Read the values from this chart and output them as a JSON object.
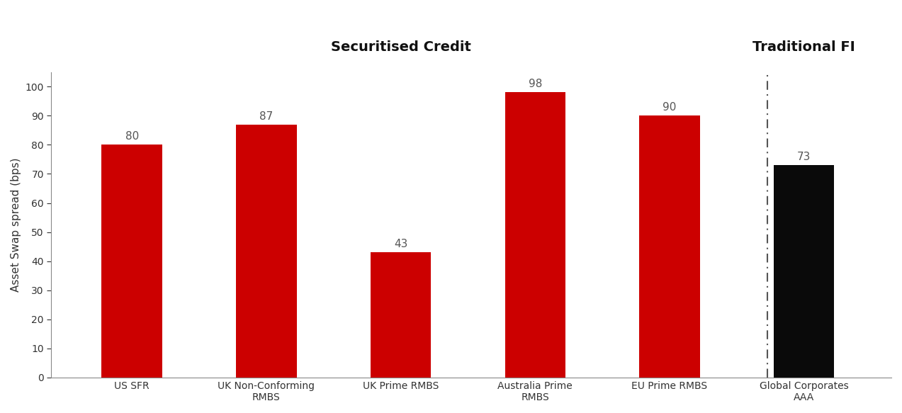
{
  "categories": [
    "US SFR",
    "UK Non-Conforming\nRMBS",
    "UK Prime RMBS",
    "Australia Prime\nRMBS",
    "EU Prime RMBS",
    "Global Corporates\nAAA"
  ],
  "values": [
    80,
    87,
    43,
    98,
    90,
    73
  ],
  "bar_colors": [
    "#CC0000",
    "#CC0000",
    "#CC0000",
    "#CC0000",
    "#CC0000",
    "#0a0a0a"
  ],
  "ylabel": "Asset Swap spread (bps)",
  "ylim": [
    0,
    105
  ],
  "yticks": [
    0,
    10,
    20,
    30,
    40,
    50,
    60,
    70,
    80,
    90,
    100
  ],
  "title_left": "Securitised Credit",
  "title_right": "Traditional FI",
  "bar_width": 0.45,
  "title_fontsize": 14,
  "axis_label_fontsize": 11,
  "tick_fontsize": 10,
  "value_label_fontsize": 11,
  "background_color": "#ffffff",
  "divider_x_between": 4.5,
  "xlim_left": -0.6,
  "xlim_right": 5.65
}
